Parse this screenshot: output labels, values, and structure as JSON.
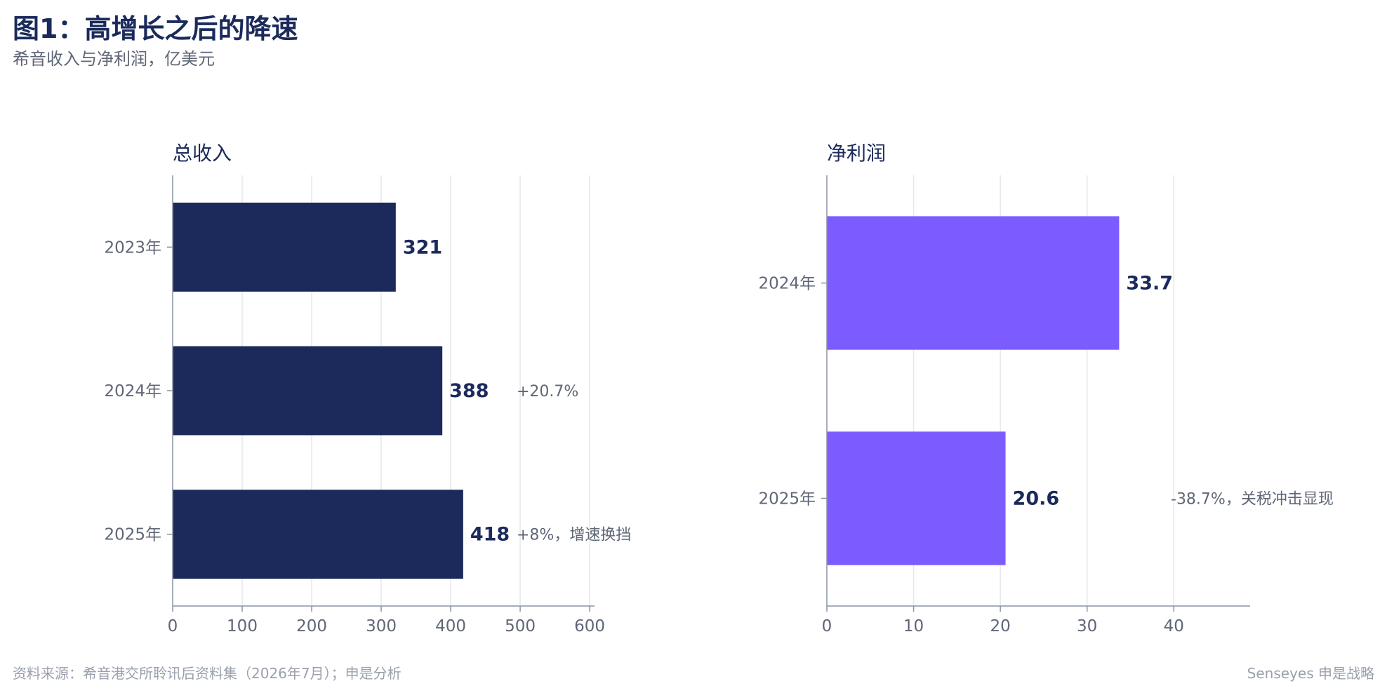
{
  "header": {
    "title": "图1：高增长之后的降速",
    "subtitle": "希音收入与净利润，亿美元"
  },
  "footer": {
    "source": "资料来源：希音港交所聆讯后资料集（2026年7月）；申是分析",
    "brand": "Senseyes 申是战略"
  },
  "chart_data": [
    {
      "type": "bar",
      "orientation": "horizontal",
      "title": "总收入",
      "categories": [
        "2023年",
        "2024年",
        "2025年"
      ],
      "values": [
        321,
        388,
        418
      ],
      "value_labels": [
        "321",
        "388",
        "418"
      ],
      "annotations": [
        "",
        "+20.7%",
        "+8%，增速换挡"
      ],
      "xlim": [
        0,
        607
      ],
      "ticks": [
        0,
        100,
        200,
        300,
        400,
        500,
        600
      ],
      "grid": true,
      "color": "#1b2a5b"
    },
    {
      "type": "bar",
      "orientation": "horizontal",
      "title": "净利润",
      "categories": [
        "2024年",
        "2025年"
      ],
      "values": [
        33.7,
        20.6
      ],
      "value_labels": [
        "33.7",
        "20.6"
      ],
      "annotations": [
        "",
        "-38.7%，关税冲击显现"
      ],
      "xlim": [
        0,
        48.8
      ],
      "ticks": [
        0,
        10,
        20,
        30,
        40
      ],
      "grid": true,
      "color": "#7c5cff"
    }
  ]
}
